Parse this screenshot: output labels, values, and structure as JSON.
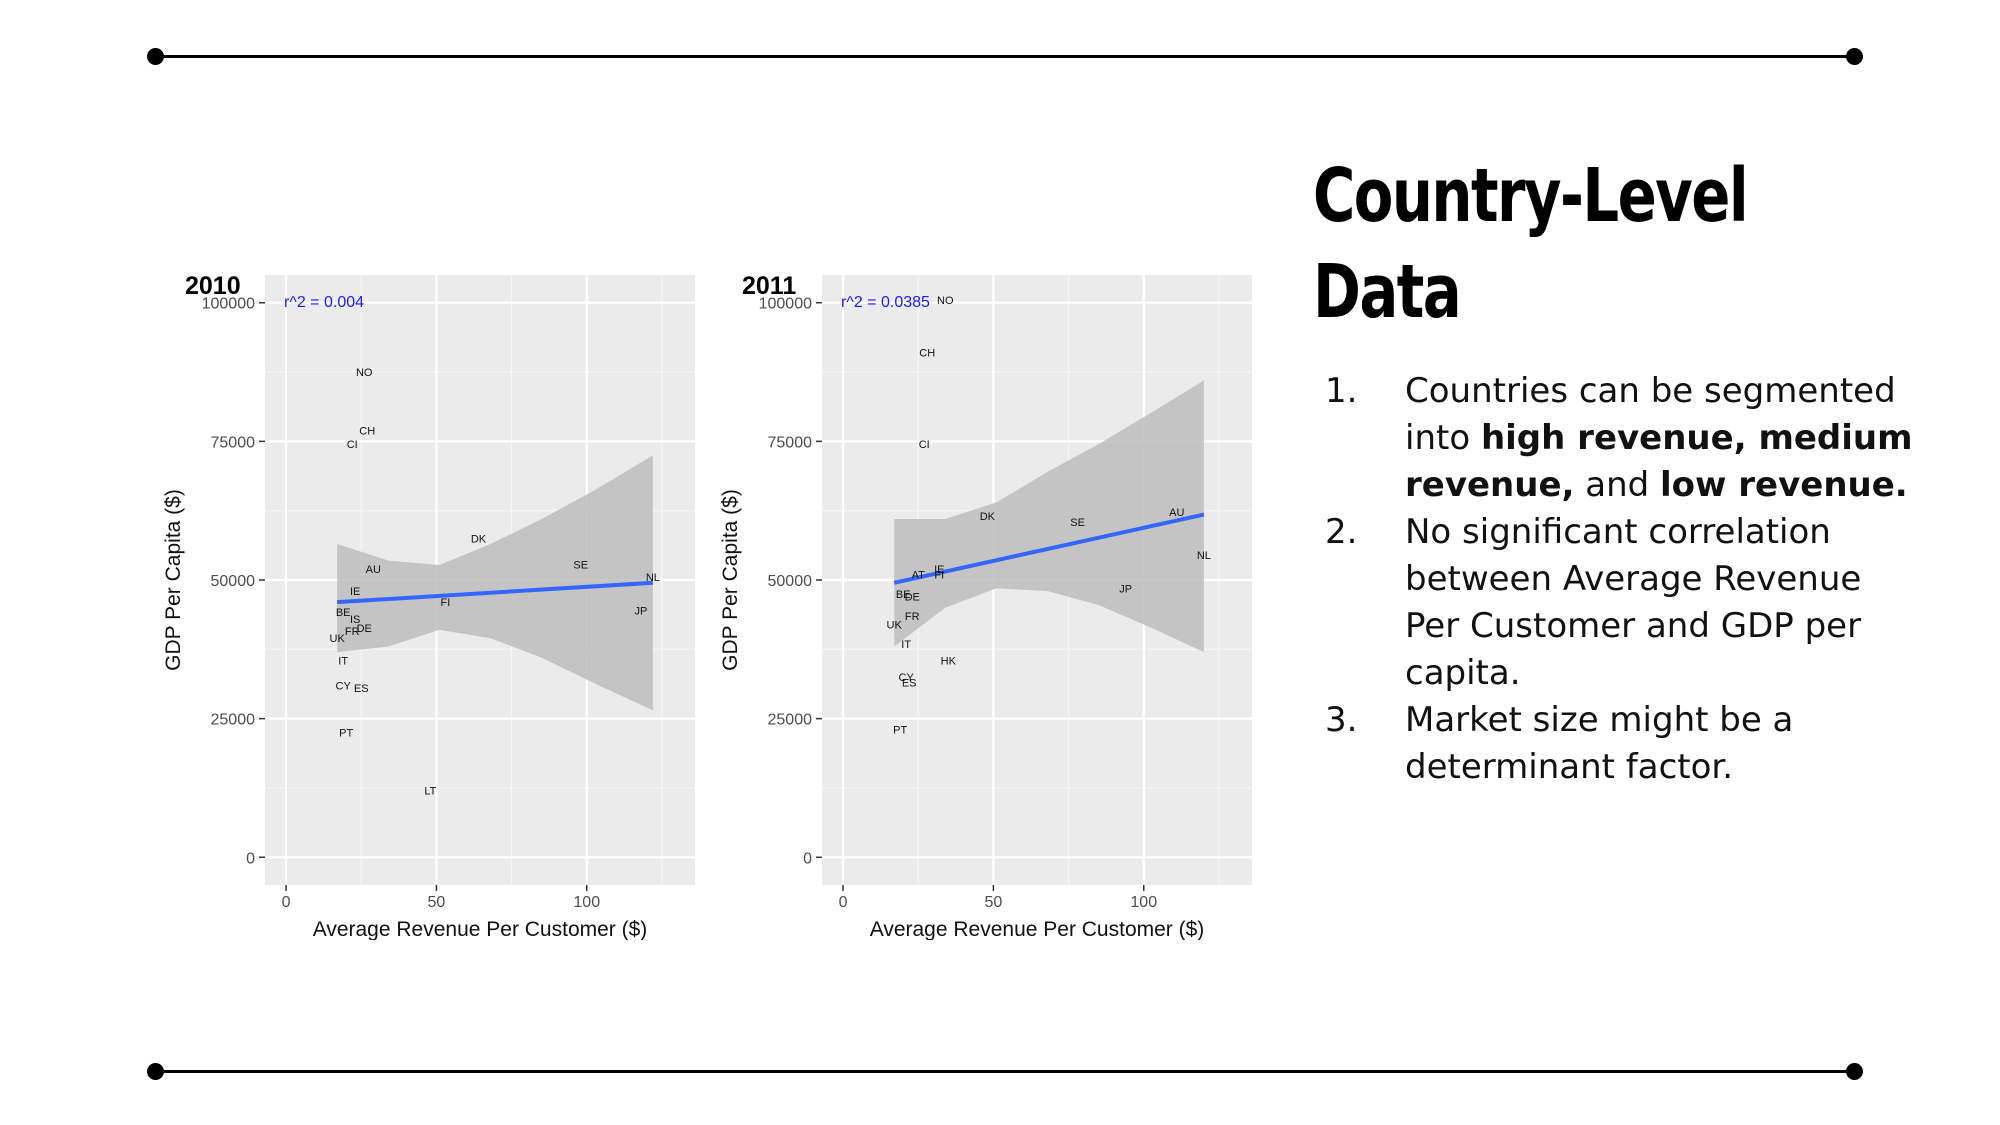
{
  "slide": {
    "title": "Country-Level Data",
    "points": [
      {
        "number": "1.",
        "parts": [
          {
            "text": "Countries can be segmented into ",
            "bold": false
          },
          {
            "text": "high revenue, medium revenue,",
            "bold": true
          },
          {
            "text": " and ",
            "bold": false
          },
          {
            "text": "low revenue.",
            "bold": true
          }
        ]
      },
      {
        "number": "2.",
        "parts": [
          {
            "text": "No significant correlation between Average Revenue Per Customer and GDP per capita.",
            "bold": false
          }
        ]
      },
      {
        "number": "3.",
        "parts": [
          {
            "text": "Market size might be a determinant factor.",
            "bold": false
          }
        ]
      }
    ]
  },
  "chart_data": [
    {
      "type": "scatter",
      "title": "2010",
      "xlabel": "Average Revenue Per Customer ($)",
      "ylabel": "GDP Per Capita ($)",
      "xlim": [
        -7,
        136
      ],
      "ylim": [
        -5000,
        105000
      ],
      "xticks": [
        0,
        50,
        100
      ],
      "xtick_labels": [
        "0",
        "50",
        "100"
      ],
      "yticks": [
        0,
        25000,
        50000,
        75000,
        100000
      ],
      "ytick_labels": [
        "0",
        "25000",
        "50000",
        "75000",
        "100000"
      ],
      "grid": true,
      "background": "#ebebeb",
      "annotation": "r^2 = 0.004",
      "annotation_color": "#1a1aff",
      "line_color": "#3366ff",
      "band_color": "#bdbdbd",
      "points": [
        {
          "label": "NO",
          "x": 26,
          "y": 87500
        },
        {
          "label": "CH",
          "x": 27,
          "y": 77000
        },
        {
          "label": "CI",
          "x": 22,
          "y": 74500
        },
        {
          "label": "DK",
          "x": 64,
          "y": 57500
        },
        {
          "label": "SE",
          "x": 98,
          "y": 52800
        },
        {
          "label": "AU",
          "x": 29,
          "y": 52000
        },
        {
          "label": "NL",
          "x": 122,
          "y": 50500
        },
        {
          "label": "IE",
          "x": 23,
          "y": 48000
        },
        {
          "label": "FI",
          "x": 53,
          "y": 46000
        },
        {
          "label": "JP",
          "x": 118,
          "y": 44500
        },
        {
          "label": "BE",
          "x": 19,
          "y": 44200
        },
        {
          "label": "IS",
          "x": 23,
          "y": 43000
        },
        {
          "label": "FR",
          "x": 22,
          "y": 40800
        },
        {
          "label": "DE",
          "x": 26,
          "y": 41300
        },
        {
          "label": "UK",
          "x": 17,
          "y": 39500
        },
        {
          "label": "IT",
          "x": 19,
          "y": 35500
        },
        {
          "label": "CY",
          "x": 19,
          "y": 31000
        },
        {
          "label": "ES",
          "x": 25,
          "y": 30500
        },
        {
          "label": "PT",
          "x": 20,
          "y": 22500
        },
        {
          "label": "LT",
          "x": 48,
          "y": 12000
        }
      ],
      "fit_line": {
        "x": [
          17,
          122
        ],
        "y": [
          46000,
          49500
        ]
      },
      "confidence_band": {
        "x": [
          17,
          34,
          51,
          68,
          85,
          102,
          122
        ],
        "lower": [
          37000,
          38000,
          41000,
          39500,
          36000,
          31500,
          26500
        ],
        "upper": [
          56500,
          53500,
          52700,
          56500,
          61000,
          66000,
          72500
        ]
      }
    },
    {
      "type": "scatter",
      "title": "2011",
      "xlabel": "Average Revenue Per Customer ($)",
      "ylabel": "GDP Per Capita ($)",
      "xlim": [
        -7,
        136
      ],
      "ylim": [
        -5000,
        105000
      ],
      "xticks": [
        0,
        50,
        100
      ],
      "xtick_labels": [
        "0",
        "50",
        "100"
      ],
      "yticks": [
        0,
        25000,
        50000,
        75000,
        100000
      ],
      "ytick_labels": [
        "0",
        "25000",
        "50000",
        "75000",
        "100000"
      ],
      "grid": true,
      "background": "#ebebeb",
      "annotation": "r^2 = 0.0385",
      "annotation_color": "#1a1aff",
      "line_color": "#3366ff",
      "band_color": "#bdbdbd",
      "points": [
        {
          "label": "NO",
          "x": 34,
          "y": 100500
        },
        {
          "label": "CH",
          "x": 28,
          "y": 91000
        },
        {
          "label": "CI",
          "x": 27,
          "y": 74500
        },
        {
          "label": "DK",
          "x": 48,
          "y": 61500
        },
        {
          "label": "SE",
          "x": 78,
          "y": 60500
        },
        {
          "label": "AU",
          "x": 111,
          "y": 62300
        },
        {
          "label": "NL",
          "x": 120,
          "y": 54500
        },
        {
          "label": "AT",
          "x": 25,
          "y": 51000
        },
        {
          "label": "IE",
          "x": 32,
          "y": 52000
        },
        {
          "label": "FI",
          "x": 32,
          "y": 51000
        },
        {
          "label": "JP",
          "x": 94,
          "y": 48500
        },
        {
          "label": "BE",
          "x": 20,
          "y": 47500
        },
        {
          "label": "DE",
          "x": 23,
          "y": 47000
        },
        {
          "label": "FR",
          "x": 23,
          "y": 43500
        },
        {
          "label": "UK",
          "x": 17,
          "y": 42000
        },
        {
          "label": "IT",
          "x": 21,
          "y": 38500
        },
        {
          "label": "HK",
          "x": 35,
          "y": 35500
        },
        {
          "label": "CY",
          "x": 21,
          "y": 32500
        },
        {
          "label": "ES",
          "x": 22,
          "y": 31500
        },
        {
          "label": "PT",
          "x": 19,
          "y": 23000
        }
      ],
      "fit_line": {
        "x": [
          17,
          120
        ],
        "y": [
          49500,
          61800
        ]
      },
      "confidence_band": {
        "x": [
          17,
          34,
          51,
          68,
          85,
          102,
          120
        ],
        "lower": [
          38000,
          45000,
          48500,
          48000,
          45500,
          41500,
          37000
        ],
        "upper": [
          61000,
          61000,
          64000,
          69500,
          74500,
          80000,
          86000
        ]
      }
    }
  ]
}
